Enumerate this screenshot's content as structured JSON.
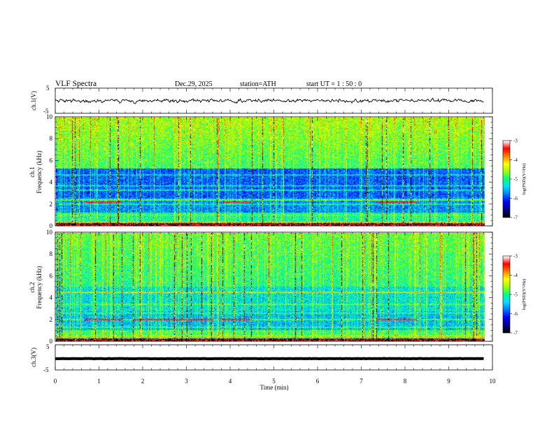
{
  "header": {
    "title": "VLF  Spectra",
    "date": "Dec.29, 2025",
    "station": "station=ATH",
    "start_ut": "start  UT  =    1  : 50 : 0"
  },
  "chart_data": [
    {
      "type": "line",
      "panel": "ch1-waveform",
      "ylabel": "ch.1(V)",
      "yticks": [
        "5",
        "-5"
      ],
      "ylim": [
        -5,
        5
      ],
      "xlim": [
        0,
        9.8
      ],
      "mean": 0,
      "noise_amplitude": 0.6
    },
    {
      "type": "heatmap",
      "panel": "ch1-spectrogram",
      "ylabel": "Frequency  (kHz)",
      "channel_label": "ch.1",
      "ylim": [
        0,
        10
      ],
      "yticks": [
        "0",
        "2",
        "4",
        "6",
        "8",
        "10"
      ],
      "xlim": [
        0,
        9.8
      ],
      "value_label": "log(PSD)(V²/Hz)",
      "value_range": [
        -7,
        -3
      ],
      "bands_khz": [
        {
          "f": 0.3,
          "level": -3.8
        },
        {
          "f": 1.0,
          "level": -4.8
        },
        {
          "f": 2.0,
          "level": -5.0
        },
        {
          "f": 2.4,
          "level": -4.2
        },
        {
          "f": 3.3,
          "level": -5.0
        },
        {
          "f": 3.7,
          "level": -5.2
        },
        {
          "f": 4.7,
          "level": -5.3
        },
        {
          "f": 5.7,
          "level": -5.4
        }
      ],
      "transmitter_segments": [
        {
          "t0": 0.65,
          "t1": 1.5,
          "f": 2.2
        },
        {
          "t0": 3.8,
          "t1": 4.45,
          "f": 2.2
        },
        {
          "t0": 7.35,
          "t1": 8.25,
          "f": 2.2
        }
      ],
      "colorbar": {
        "ticks": [
          "-3",
          "-4",
          "-5",
          "-6",
          "-7"
        ],
        "label": "log(PSD)(V²/Hz)"
      }
    },
    {
      "type": "heatmap",
      "panel": "ch2-spectrogram",
      "ylabel": "Frequency  (kHz)",
      "channel_label": "ch.2",
      "ylim": [
        0,
        10
      ],
      "yticks": [
        "0",
        "2",
        "4",
        "6",
        "8",
        "10"
      ],
      "xlim": [
        0,
        9.8
      ],
      "value_label": "log(PSD)(V²/Hz)",
      "value_range": [
        -7,
        -3
      ],
      "bands_khz": [
        {
          "f": 0.5,
          "level": -4.5
        },
        {
          "f": 1.3,
          "level": -4.8
        },
        {
          "f": 2.0,
          "level": -4.6
        },
        {
          "f": 2.6,
          "level": -4.9
        },
        {
          "f": 3.4,
          "level": -4.7
        },
        {
          "f": 4.5,
          "level": -4.2
        }
      ],
      "transmitter_segments": [
        {
          "t0": 0.65,
          "t1": 1.5,
          "f": 2.0
        },
        {
          "t0": 1.75,
          "t1": 3.6,
          "f": 2.0
        },
        {
          "t0": 3.75,
          "t1": 4.45,
          "f": 2.0
        },
        {
          "t0": 7.35,
          "t1": 8.25,
          "f": 2.0
        }
      ],
      "colorbar": {
        "ticks": [
          "-3",
          "-4",
          "-5",
          "-6",
          "-7"
        ],
        "label": "log(PSD)(V²/Hz)"
      }
    },
    {
      "type": "line",
      "panel": "ch3-waveform",
      "ylabel": "ch.3(V)",
      "yticks": [
        "5",
        "-5"
      ],
      "ylim": [
        -5,
        5
      ],
      "xlim": [
        0,
        9.8
      ],
      "mean": -0.5,
      "noise_amplitude": 0.05,
      "xlabel": "Time  (min)",
      "xticks": [
        "0",
        "1",
        "2",
        "3",
        "4",
        "5",
        "6",
        "7",
        "8",
        "9",
        "10"
      ],
      "x_axis_max": 10
    }
  ],
  "colors": {
    "colormap": [
      "#000000",
      "#00008c",
      "#0000ff",
      "#0078ff",
      "#00e0ff",
      "#00ff80",
      "#a0ff00",
      "#ffff00",
      "#ff8000",
      "#ff0000",
      "#ffffff"
    ],
    "trace": "#000000",
    "segment": "#cc2200"
  }
}
